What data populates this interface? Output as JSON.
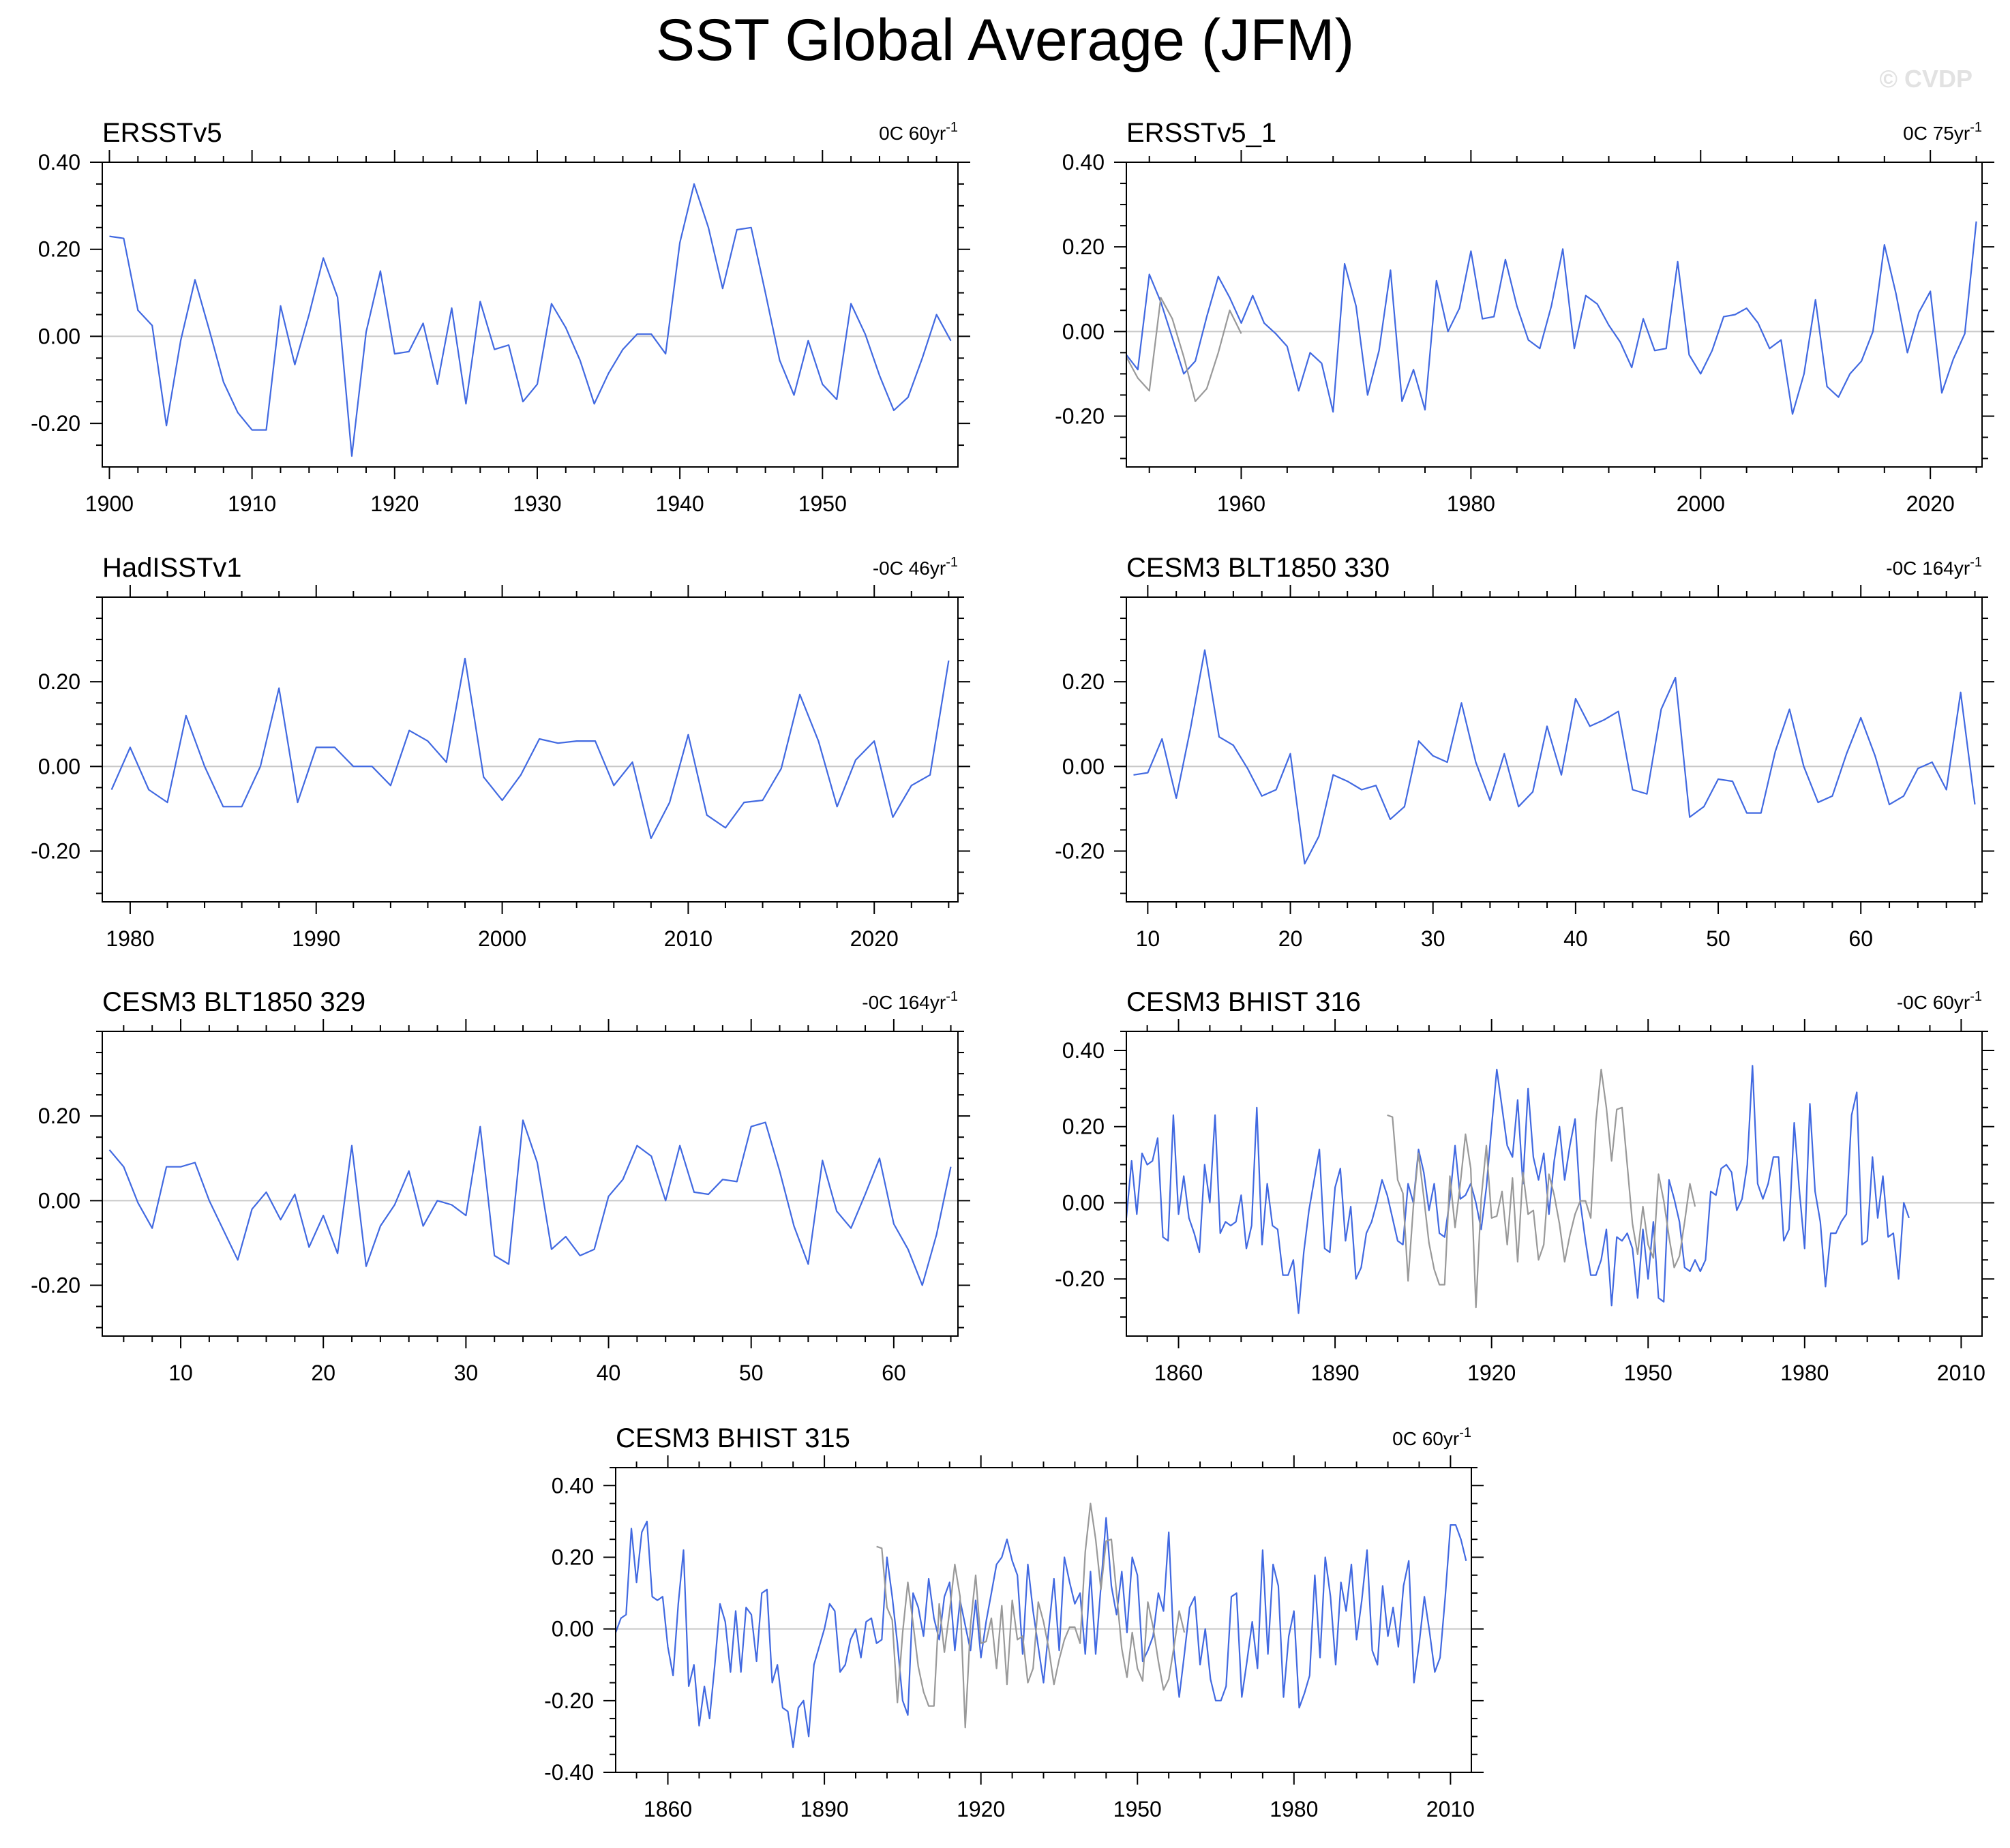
{
  "title": "SST Global Average (JFM)",
  "credit": "© CVDP",
  "colors": {
    "series": "#4169e1",
    "reference": "#999999",
    "zero_line": "#c8c8c8",
    "frame": "#000000"
  },
  "chart_data": [
    {
      "type": "line",
      "title": "ERSSTv5",
      "trend_value": "0C 60yr",
      "trend_exp": "-1",
      "xlim": [
        1899.5,
        1959.5
      ],
      "ylim": [
        -0.3,
        0.4
      ],
      "xticks": [
        1900,
        1910,
        1920,
        1930,
        1940,
        1950
      ],
      "xtick_labels": [
        "1900",
        "1910",
        "1920",
        "1930",
        "1940",
        "1950"
      ],
      "yticks": [
        -0.2,
        0.0,
        0.2,
        0.4
      ],
      "ytick_labels": [
        "-0.20",
        "0.00",
        "0.20",
        "0.40"
      ],
      "series": [
        {
          "name": "ERSSTv5",
          "x_start": 1900,
          "values": [
            0.23,
            0.225,
            0.06,
            0.025,
            -0.205,
            -0.01,
            0.13,
            0.015,
            -0.105,
            -0.175,
            -0.215,
            -0.215,
            0.07,
            -0.065,
            0.05,
            0.18,
            0.09,
            -0.275,
            0.01,
            0.15,
            -0.04,
            -0.035,
            0.03,
            -0.11,
            0.065,
            -0.155,
            0.08,
            -0.03,
            -0.02,
            -0.15,
            -0.11,
            0.075,
            0.02,
            -0.055,
            -0.155,
            -0.085,
            -0.03,
            0.005,
            0.005,
            -0.04,
            0.215,
            0.35,
            0.25,
            0.11,
            0.245,
            0.25,
            0.1,
            -0.055,
            -0.135,
            -0.01,
            -0.11,
            -0.145,
            0.075,
            0.005,
            -0.09,
            -0.17,
            -0.14,
            -0.05,
            0.05,
            -0.01
          ]
        }
      ]
    },
    {
      "type": "line",
      "title": "ERSSTv5_1",
      "trend_value": "0C 75yr",
      "trend_exp": "-1",
      "xlim": [
        1950,
        2024.5
      ],
      "ylim": [
        -0.32,
        0.4
      ],
      "xticks": [
        1960,
        1980,
        2000,
        2020
      ],
      "xtick_labels": [
        "1960",
        "1980",
        "2000",
        "2020"
      ],
      "yticks": [
        -0.2,
        0.0,
        0.2,
        0.4
      ],
      "ytick_labels": [
        "-0.20",
        "0.00",
        "0.20",
        "0.40"
      ],
      "series": [
        {
          "name": "ERSSTv5_1",
          "x_start": 1950,
          "values": [
            -0.055,
            -0.09,
            0.135,
            0.07,
            -0.015,
            -0.1,
            -0.07,
            0.035,
            0.13,
            0.08,
            0.02,
            0.085,
            0.02,
            -0.005,
            -0.035,
            -0.14,
            -0.05,
            -0.075,
            -0.19,
            0.16,
            0.06,
            -0.15,
            -0.045,
            0.145,
            -0.165,
            -0.09,
            -0.185,
            0.12,
            0.0,
            0.055,
            0.19,
            0.03,
            0.035,
            0.17,
            0.06,
            -0.02,
            -0.04,
            0.06,
            0.195,
            -0.04,
            0.085,
            0.065,
            0.015,
            -0.025,
            -0.085,
            0.03,
            -0.045,
            -0.04,
            0.165,
            -0.055,
            -0.1,
            -0.045,
            0.035,
            0.04,
            0.055,
            0.02,
            -0.04,
            -0.02,
            -0.195,
            -0.1,
            0.075,
            -0.13,
            -0.155,
            -0.1,
            -0.07,
            0.0,
            0.205,
            0.09,
            -0.05,
            0.045,
            0.095,
            -0.145,
            -0.065,
            -0.005,
            0.26
          ]
        },
        {
          "name": "reference",
          "x_start": 1950,
          "values": [
            -0.06,
            -0.11,
            -0.14,
            0.08,
            0.03,
            -0.06,
            -0.165,
            -0.135,
            -0.05,
            0.05,
            -0.005
          ]
        }
      ]
    },
    {
      "type": "line",
      "title": "HadISSTv1",
      "trend_value": "-0C 46yr",
      "trend_exp": "-1",
      "xlim": [
        1978.5,
        2024.5
      ],
      "ylim": [
        -0.32,
        0.4
      ],
      "xticks": [
        1980,
        1990,
        2000,
        2010,
        2020
      ],
      "xtick_labels": [
        "1980",
        "1990",
        "2000",
        "2010",
        "2020"
      ],
      "yticks": [
        -0.2,
        0.0,
        0.2
      ],
      "ytick_labels": [
        "-0.20",
        "0.00",
        "0.20"
      ],
      "series": [
        {
          "name": "HadISSTv1",
          "x_start": 1979,
          "values": [
            -0.055,
            0.045,
            -0.055,
            -0.085,
            0.12,
            0.0,
            -0.095,
            -0.095,
            0.0,
            0.185,
            -0.085,
            0.045,
            0.045,
            0.0,
            0.0,
            -0.045,
            0.085,
            0.06,
            0.01,
            0.255,
            -0.025,
            -0.08,
            -0.02,
            0.065,
            0.055,
            0.06,
            0.06,
            -0.045,
            0.01,
            -0.17,
            -0.085,
            0.075,
            -0.115,
            -0.145,
            -0.085,
            -0.08,
            -0.005,
            0.17,
            0.06,
            -0.095,
            0.015,
            0.06,
            -0.12,
            -0.045,
            -0.02,
            0.25
          ]
        }
      ]
    },
    {
      "type": "line",
      "title": "CESM3 BLT1850 330",
      "trend_value": "-0C 164yr",
      "trend_exp": "-1",
      "xlim": [
        8.5,
        68.5
      ],
      "ylim": [
        -0.32,
        0.4
      ],
      "xticks": [
        10,
        20,
        30,
        40,
        50,
        60
      ],
      "xtick_labels": [
        "10",
        "20",
        "30",
        "40",
        "50",
        "60"
      ],
      "yticks": [
        -0.2,
        0.0,
        0.2
      ],
      "ytick_labels": [
        "-0.20",
        "0.00",
        "0.20"
      ],
      "series": [
        {
          "name": "CESM3 BLT1850 330",
          "x_start": 9,
          "values": [
            -0.02,
            -0.015,
            0.065,
            -0.075,
            0.09,
            0.275,
            0.07,
            0.05,
            -0.005,
            -0.07,
            -0.055,
            0.03,
            -0.23,
            -0.165,
            -0.02,
            -0.035,
            -0.055,
            -0.045,
            -0.125,
            -0.095,
            0.06,
            0.025,
            0.01,
            0.15,
            0.01,
            -0.08,
            0.03,
            -0.095,
            -0.06,
            0.095,
            -0.02,
            0.16,
            0.095,
            0.11,
            0.13,
            -0.055,
            -0.065,
            0.135,
            0.21,
            -0.12,
            -0.095,
            -0.03,
            -0.035,
            -0.11,
            -0.11,
            0.035,
            0.135,
            0.0,
            -0.085,
            -0.07,
            0.03,
            0.115,
            0.025,
            -0.09,
            -0.07,
            -0.005,
            0.01,
            -0.055,
            0.175,
            -0.09
          ]
        }
      ]
    },
    {
      "type": "line",
      "title": "CESM3 BLT1850 329",
      "trend_value": "-0C 164yr",
      "trend_exp": "-1",
      "xlim": [
        4.5,
        64.5
      ],
      "ylim": [
        -0.32,
        0.4
      ],
      "xticks": [
        10,
        20,
        30,
        40,
        50,
        60
      ],
      "xtick_labels": [
        "10",
        "20",
        "30",
        "40",
        "50",
        "60"
      ],
      "yticks": [
        -0.2,
        0.0,
        0.2
      ],
      "ytick_labels": [
        "-0.20",
        "0.00",
        "0.20"
      ],
      "series": [
        {
          "name": "CESM3 BLT1850 329",
          "x_start": 5,
          "values": [
            0.12,
            0.08,
            -0.005,
            -0.065,
            0.08,
            0.08,
            0.09,
            0.0,
            -0.07,
            -0.14,
            -0.02,
            0.02,
            -0.045,
            0.015,
            -0.11,
            -0.035,
            -0.125,
            0.13,
            -0.155,
            -0.06,
            -0.01,
            0.07,
            -0.06,
            0.0,
            -0.01,
            -0.035,
            0.175,
            -0.13,
            -0.15,
            0.19,
            0.09,
            -0.115,
            -0.085,
            -0.13,
            -0.115,
            0.01,
            0.05,
            0.13,
            0.105,
            0.0,
            0.13,
            0.02,
            0.015,
            0.05,
            0.045,
            0.175,
            0.185,
            0.07,
            -0.06,
            -0.15,
            0.095,
            -0.025,
            -0.065,
            0.015,
            0.1,
            -0.055,
            -0.115,
            -0.2,
            -0.08,
            0.08
          ]
        }
      ]
    },
    {
      "type": "line",
      "title": "CESM3 BHIST 316",
      "trend_value": "-0C 60yr",
      "trend_exp": "-1",
      "xlim": [
        1850,
        2014
      ],
      "ylim": [
        -0.35,
        0.45
      ],
      "xticks": [
        1860,
        1890,
        1920,
        1950,
        1980,
        2010
      ],
      "xtick_labels": [
        "1860",
        "1890",
        "1920",
        "1950",
        "1980",
        "2010"
      ],
      "yticks": [
        -0.2,
        0.0,
        0.2,
        0.4
      ],
      "ytick_labels": [
        "-0.20",
        "0.00",
        "0.20",
        "0.40"
      ],
      "series": [
        {
          "name": "CESM3 BHIST 316",
          "x_start": 1850,
          "values": [
            -0.04,
            0.11,
            -0.03,
            0.13,
            0.1,
            0.11,
            0.17,
            -0.09,
            -0.1,
            0.23,
            -0.03,
            0.07,
            -0.04,
            -0.08,
            -0.13,
            0.1,
            0.0,
            0.23,
            -0.08,
            -0.05,
            -0.06,
            -0.05,
            0.02,
            -0.12,
            -0.06,
            0.25,
            -0.11,
            0.05,
            -0.06,
            -0.07,
            -0.19,
            -0.19,
            -0.15,
            -0.29,
            -0.13,
            -0.02,
            0.06,
            0.14,
            -0.12,
            -0.13,
            0.04,
            0.09,
            -0.1,
            -0.01,
            -0.2,
            -0.17,
            -0.08,
            -0.05,
            0.0,
            0.06,
            0.02,
            -0.04,
            -0.1,
            -0.11,
            0.05,
            0.0,
            0.14,
            0.08,
            -0.02,
            0.05,
            -0.08,
            -0.09,
            0.01,
            0.15,
            0.01,
            0.02,
            0.05,
            0.0,
            -0.07,
            0.04,
            0.2,
            0.35,
            0.25,
            0.15,
            0.12,
            0.27,
            0.05,
            0.3,
            0.12,
            0.06,
            0.13,
            -0.03,
            0.11,
            0.2,
            0.06,
            0.15,
            0.22,
            0.0,
            -0.1,
            -0.19,
            -0.19,
            -0.15,
            -0.07,
            -0.27,
            -0.09,
            -0.1,
            -0.08,
            -0.12,
            -0.25,
            -0.07,
            -0.2,
            -0.05,
            -0.25,
            -0.26,
            0.06,
            0.01,
            -0.05,
            -0.17,
            -0.18,
            -0.15,
            -0.18,
            -0.15,
            0.03,
            0.02,
            0.09,
            0.1,
            0.08,
            -0.02,
            0.01,
            0.1,
            0.36,
            0.05,
            0.01,
            0.05,
            0.12,
            0.12,
            -0.1,
            -0.07,
            0.21,
            0.03,
            -0.12,
            0.26,
            0.03,
            -0.05,
            -0.22,
            -0.08,
            -0.08,
            -0.05,
            -0.03,
            0.23,
            0.29,
            -0.11,
            -0.1,
            0.12,
            -0.04,
            0.07,
            -0.09,
            -0.08,
            -0.2,
            0.0,
            -0.04
          ]
        },
        {
          "name": "reference",
          "x_start": 1900,
          "values": [
            0.23,
            0.225,
            0.06,
            0.025,
            -0.205,
            -0.01,
            0.13,
            0.015,
            -0.105,
            -0.175,
            -0.215,
            -0.215,
            0.07,
            -0.065,
            0.05,
            0.18,
            0.09,
            -0.275,
            0.01,
            0.15,
            -0.04,
            -0.035,
            0.03,
            -0.11,
            0.065,
            -0.155,
            0.08,
            -0.03,
            -0.02,
            -0.15,
            -0.11,
            0.075,
            0.02,
            -0.055,
            -0.155,
            -0.085,
            -0.03,
            0.005,
            0.005,
            -0.04,
            0.215,
            0.35,
            0.25,
            0.11,
            0.245,
            0.25,
            0.1,
            -0.055,
            -0.135,
            -0.01,
            -0.11,
            -0.145,
            0.075,
            0.005,
            -0.09,
            -0.17,
            -0.14,
            -0.05,
            0.05,
            -0.01
          ]
        }
      ]
    },
    {
      "type": "line",
      "title": "CESM3 BHIST 315",
      "trend_value": "0C 60yr",
      "trend_exp": "-1",
      "xlim": [
        1850,
        2014
      ],
      "ylim": [
        -0.4,
        0.45
      ],
      "xticks": [
        1860,
        1890,
        1920,
        1950,
        1980,
        2010
      ],
      "xtick_labels": [
        "1860",
        "1890",
        "1920",
        "1950",
        "1980",
        "2010"
      ],
      "yticks": [
        -0.4,
        -0.2,
        0.0,
        0.2,
        0.4
      ],
      "ytick_labels": [
        "-0.40",
        "-0.20",
        "0.00",
        "0.20",
        "0.40"
      ],
      "series": [
        {
          "name": "CESM3 BHIST 315",
          "x_start": 1850,
          "values": [
            -0.01,
            0.03,
            0.04,
            0.28,
            0.13,
            0.27,
            0.3,
            0.09,
            0.08,
            0.09,
            -0.05,
            -0.13,
            0.07,
            0.22,
            -0.16,
            -0.1,
            -0.27,
            -0.16,
            -0.25,
            -0.1,
            0.07,
            0.02,
            -0.12,
            0.05,
            -0.12,
            0.06,
            0.04,
            -0.09,
            0.1,
            0.11,
            -0.15,
            -0.1,
            -0.22,
            -0.23,
            -0.33,
            -0.22,
            -0.2,
            -0.3,
            -0.1,
            -0.05,
            0.0,
            0.07,
            0.05,
            -0.12,
            -0.1,
            -0.03,
            0.0,
            -0.08,
            0.02,
            0.03,
            -0.04,
            -0.03,
            0.2,
            0.09,
            -0.04,
            -0.2,
            -0.24,
            0.1,
            0.06,
            -0.02,
            0.14,
            0.03,
            -0.03,
            0.09,
            0.13,
            -0.06,
            0.08,
            0.01,
            -0.06,
            0.08,
            -0.08,
            0.02,
            0.1,
            0.18,
            0.2,
            0.25,
            0.19,
            0.15,
            -0.07,
            0.18,
            0.05,
            -0.05,
            -0.15,
            0.0,
            0.14,
            -0.06,
            0.2,
            0.13,
            0.07,
            0.1,
            -0.07,
            0.16,
            -0.07,
            0.12,
            0.31,
            0.12,
            0.04,
            0.16,
            -0.01,
            0.2,
            0.15,
            -0.09,
            -0.06,
            -0.02,
            0.1,
            0.05,
            0.27,
            -0.06,
            -0.19,
            -0.07,
            0.06,
            0.09,
            -0.1,
            0.0,
            -0.14,
            -0.2,
            -0.2,
            -0.16,
            0.09,
            0.1,
            -0.19,
            -0.09,
            0.02,
            -0.11,
            0.22,
            -0.07,
            0.18,
            0.12,
            -0.19,
            -0.02,
            0.05,
            -0.22,
            -0.18,
            -0.13,
            0.15,
            -0.08,
            0.2,
            0.09,
            -0.1,
            0.13,
            0.05,
            0.18,
            -0.03,
            0.08,
            0.22,
            -0.06,
            -0.1,
            0.12,
            -0.02,
            0.06,
            -0.05,
            0.12,
            0.19,
            -0.15,
            -0.04,
            0.09,
            -0.01,
            -0.12,
            -0.08,
            0.09,
            0.29,
            0.29,
            0.25,
            0.19
          ]
        },
        {
          "name": "reference",
          "x_start": 1900,
          "values": [
            0.23,
            0.225,
            0.06,
            0.025,
            -0.205,
            -0.01,
            0.13,
            0.015,
            -0.105,
            -0.175,
            -0.215,
            -0.215,
            0.07,
            -0.065,
            0.05,
            0.18,
            0.09,
            -0.275,
            0.01,
            0.15,
            -0.04,
            -0.035,
            0.03,
            -0.11,
            0.065,
            -0.155,
            0.08,
            -0.03,
            -0.02,
            -0.15,
            -0.11,
            0.075,
            0.02,
            -0.055,
            -0.155,
            -0.085,
            -0.03,
            0.005,
            0.005,
            -0.04,
            0.215,
            0.35,
            0.25,
            0.11,
            0.245,
            0.25,
            0.1,
            -0.055,
            -0.135,
            -0.01,
            -0.11,
            -0.145,
            0.075,
            0.005,
            -0.09,
            -0.17,
            -0.14,
            -0.05,
            0.05,
            -0.01
          ]
        }
      ]
    }
  ]
}
